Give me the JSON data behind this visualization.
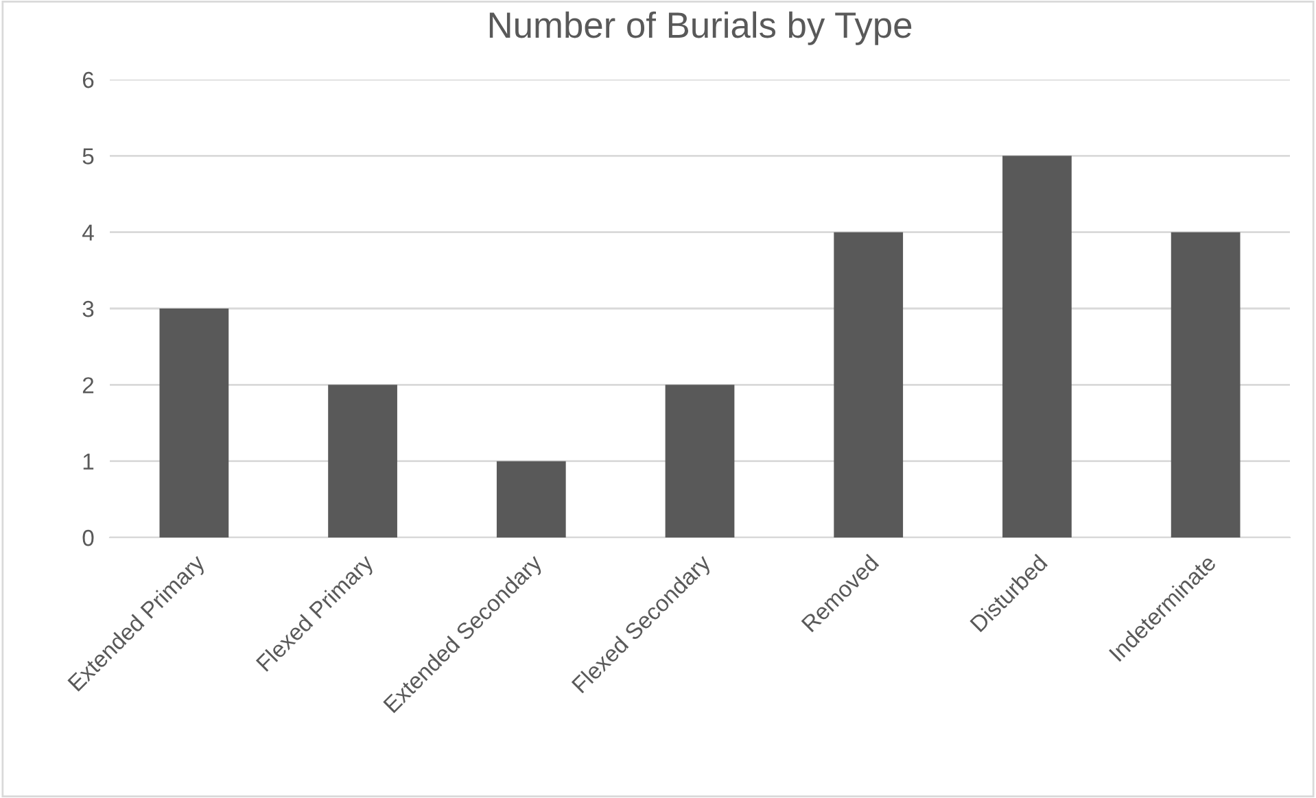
{
  "chart_data": {
    "type": "bar",
    "title": "Number of Burials by Type",
    "categories": [
      "Extended Primary",
      "Flexed Primary",
      "Extended Secondary",
      "Flexed Secondary",
      "Removed",
      "Disturbed",
      "Indeterminate"
    ],
    "values": [
      3,
      2,
      1,
      2,
      4,
      5,
      4
    ],
    "color": "#595959",
    "ylim": [
      0,
      6
    ],
    "yticks": [
      0,
      1,
      2,
      3,
      4,
      5,
      6
    ],
    "grid": "y",
    "legend": false
  }
}
